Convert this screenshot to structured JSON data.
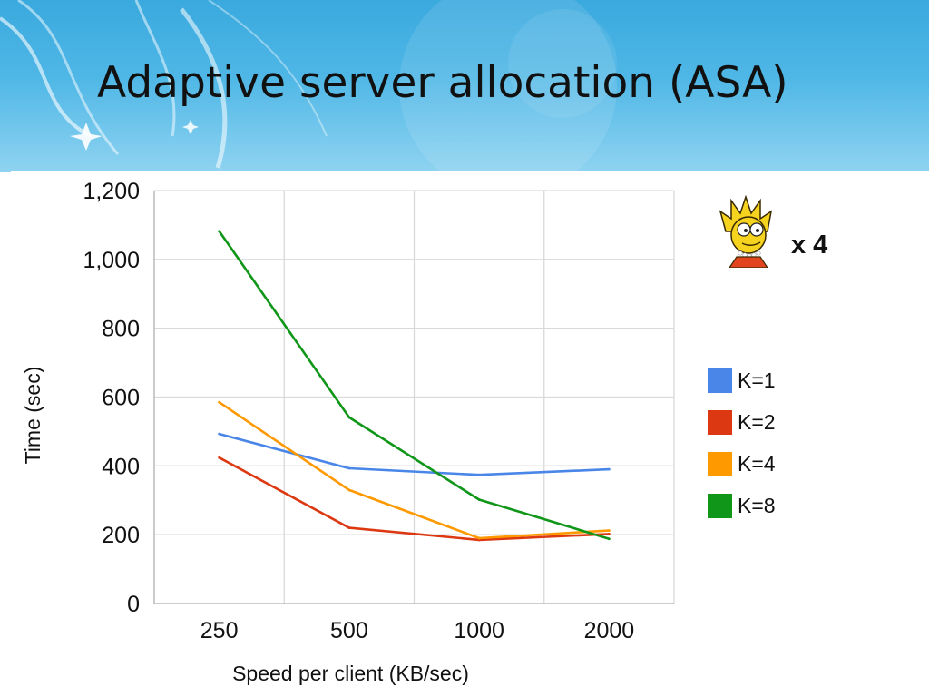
{
  "slide": {
    "title": "Adaptive server allocation (ASA)",
    "multiplier_label": "x 4",
    "mascot_icon": "cartoon-girl-icon",
    "banner_color": "#3aa9de"
  },
  "chart_data": {
    "type": "line",
    "xlabel": "Speed per client (KB/sec)",
    "ylabel": "Time (sec)",
    "categories": [
      "250",
      "500",
      "1000",
      "2000"
    ],
    "ylim": [
      0,
      1200
    ],
    "yticks": [
      "0",
      "200",
      "400",
      "600",
      "800",
      "1,000",
      "1,200"
    ],
    "grid": true,
    "legend_position": "right",
    "series": [
      {
        "name": "K=1",
        "color": "#4a86e8",
        "values": [
          493,
          393,
          374,
          390
        ]
      },
      {
        "name": "K=2",
        "color": "#dc3912",
        "values": [
          424,
          220,
          185,
          202
        ]
      },
      {
        "name": "K=4",
        "color": "#ff9900",
        "values": [
          585,
          330,
          190,
          212
        ]
      },
      {
        "name": "K=8",
        "color": "#109618",
        "values": [
          1082,
          541,
          302,
          188
        ]
      }
    ]
  }
}
